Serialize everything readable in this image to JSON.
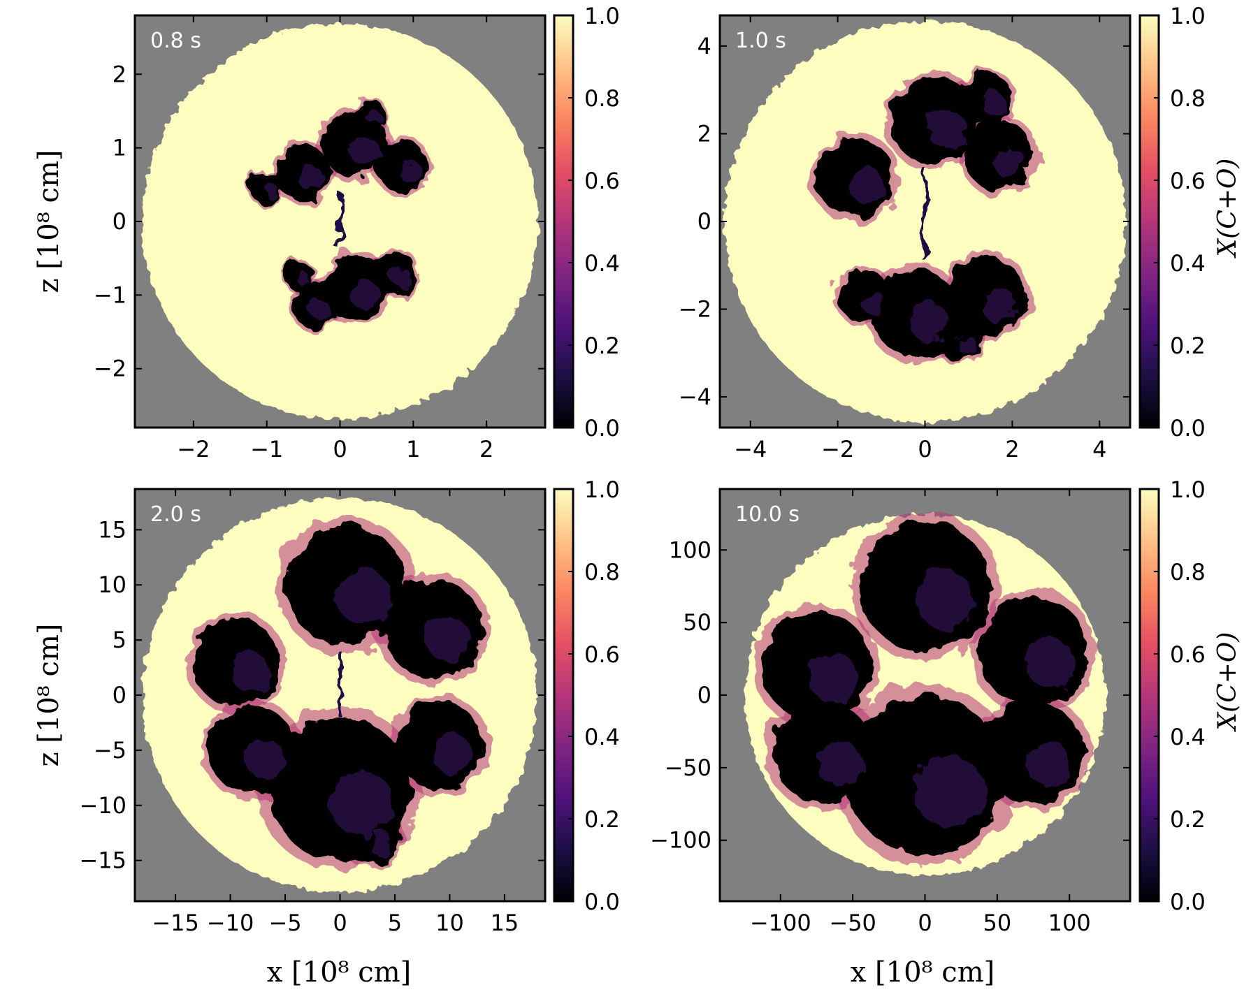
{
  "figure": {
    "xlabel": "x [10⁸ cm]",
    "ylabel": "z [10⁸ cm]",
    "colorbar_label": "X(C+O)"
  },
  "colors": {
    "background_gray": "#808080",
    "colormap": "magma",
    "colormap_stops": [
      "#000004",
      "#1c1044",
      "#4f127b",
      "#812581",
      "#b5367a",
      "#e55064",
      "#fb8761",
      "#fec287",
      "#fcfdbf"
    ]
  },
  "chart_data": [
    {
      "type": "heatmap",
      "panel": "top-left",
      "time_label": "0.8 s",
      "xlim": [
        -2.8,
        2.8
      ],
      "ylim": [
        -2.8,
        2.8
      ],
      "xticks": [
        -2,
        -1,
        0,
        1,
        2
      ],
      "xtick_labels": [
        "−2",
        "−1",
        "0",
        "1",
        "2"
      ],
      "yticks": [
        -2,
        -1,
        0,
        1,
        2
      ],
      "ytick_labels": [
        "−2",
        "−1",
        "0",
        "1",
        "2"
      ],
      "show_xlabel": false,
      "show_ylabel": true,
      "show_colorbar_label": false,
      "colorbar": {
        "range": [
          0.0,
          1.0
        ],
        "ticks": [
          "0.0",
          "0.2",
          "0.4",
          "0.6",
          "0.8",
          "1.0"
        ]
      },
      "ejecta_radius": 2.7,
      "plumes": [
        {
          "cx": 0.2,
          "cy": 1.05,
          "r": 0.45
        },
        {
          "cx": -0.5,
          "cy": 0.65,
          "r": 0.38
        },
        {
          "cx": -1.0,
          "cy": 0.45,
          "r": 0.22
        },
        {
          "cx": 0.85,
          "cy": 0.75,
          "r": 0.35
        },
        {
          "cx": 0.4,
          "cy": 1.45,
          "r": 0.22
        },
        {
          "cx": 0.2,
          "cy": -0.9,
          "r": 0.45
        },
        {
          "cx": -0.35,
          "cy": -1.15,
          "r": 0.3
        },
        {
          "cx": 0.75,
          "cy": -0.7,
          "r": 0.3
        },
        {
          "cx": -0.55,
          "cy": -0.75,
          "r": 0.2
        }
      ],
      "filaments": [
        [
          0.0,
          0.4,
          0.0,
          -0.4
        ]
      ]
    },
    {
      "type": "heatmap",
      "panel": "top-right",
      "time_label": "1.0 s",
      "xlim": [
        -4.7,
        4.7
      ],
      "ylim": [
        -4.7,
        4.7
      ],
      "xticks": [
        -4,
        -2,
        0,
        2,
        4
      ],
      "xtick_labels": [
        "−4",
        "−2",
        "0",
        "2",
        "4"
      ],
      "yticks": [
        -4,
        -2,
        0,
        2,
        4
      ],
      "ytick_labels": [
        "−4",
        "−2",
        "0",
        "2",
        "4"
      ],
      "show_xlabel": false,
      "show_ylabel": false,
      "show_colorbar_label": true,
      "colorbar": {
        "range": [
          0.0,
          1.0
        ],
        "ticks": [
          "0.0",
          "0.2",
          "0.4",
          "0.6",
          "0.8",
          "1.0"
        ]
      },
      "ejecta_radius": 4.6,
      "plumes": [
        {
          "cx": 0.2,
          "cy": 2.3,
          "r": 1.0
        },
        {
          "cx": -1.6,
          "cy": 1.0,
          "r": 0.9
        },
        {
          "cx": 1.7,
          "cy": 1.5,
          "r": 0.8
        },
        {
          "cx": 1.4,
          "cy": 2.8,
          "r": 0.6
        },
        {
          "cx": -0.2,
          "cy": -2.1,
          "r": 1.0
        },
        {
          "cx": 1.4,
          "cy": -1.7,
          "r": 0.9
        },
        {
          "cx": -1.4,
          "cy": -1.7,
          "r": 0.6
        },
        {
          "cx": 0.8,
          "cy": -2.7,
          "r": 0.5
        }
      ],
      "filaments": [
        [
          0.0,
          1.2,
          0.0,
          -0.9
        ]
      ]
    },
    {
      "type": "heatmap",
      "panel": "bottom-left",
      "time_label": "2.0 s",
      "xlim": [
        -18.7,
        18.7
      ],
      "ylim": [
        -18.7,
        18.7
      ],
      "xticks": [
        -15,
        -10,
        -5,
        0,
        5,
        10,
        15
      ],
      "xtick_labels": [
        "−15",
        "−10",
        "−5",
        "0",
        "5",
        "10",
        "15"
      ],
      "yticks": [
        -15,
        -10,
        -5,
        0,
        5,
        10,
        15
      ],
      "ytick_labels": [
        "−15",
        "−10",
        "−5",
        "0",
        "5",
        "10",
        "15"
      ],
      "show_xlabel": true,
      "show_ylabel": true,
      "show_colorbar_label": false,
      "colorbar": {
        "range": [
          0.0,
          1.0
        ],
        "ticks": [
          "0.0",
          "0.2",
          "0.4",
          "0.6",
          "0.8",
          "1.0"
        ]
      },
      "ejecta_radius": 18.0,
      "plumes": [
        {
          "cx": 0.5,
          "cy": 10.0,
          "r": 5.5
        },
        {
          "cx": -9.5,
          "cy": 3.0,
          "r": 4.0
        },
        {
          "cx": 8.5,
          "cy": 6.0,
          "r": 4.5
        },
        {
          "cx": 0.0,
          "cy": -8.5,
          "r": 6.5
        },
        {
          "cx": -8.0,
          "cy": -5.0,
          "r": 4.0
        },
        {
          "cx": 9.0,
          "cy": -4.5,
          "r": 4.0
        },
        {
          "cx": 3.0,
          "cy": -13.0,
          "r": 2.5
        }
      ],
      "filaments": [
        [
          0.0,
          4.0,
          0.0,
          -2.0
        ]
      ]
    },
    {
      "type": "heatmap",
      "panel": "bottom-right",
      "time_label": "10.0 s",
      "xlim": [
        -142,
        142
      ],
      "ylim": [
        -142,
        142
      ],
      "xticks": [
        -100,
        -50,
        0,
        50,
        100
      ],
      "xtick_labels": [
        "−100",
        "−50",
        "0",
        "50",
        "100"
      ],
      "yticks": [
        -100,
        -50,
        0,
        50,
        100
      ],
      "ytick_labels": [
        "−100",
        "−50",
        "0",
        "50",
        "100"
      ],
      "show_xlabel": true,
      "show_ylabel": false,
      "show_colorbar_label": true,
      "colorbar": {
        "range": [
          0.0,
          1.0
        ],
        "ticks": [
          "0.0",
          "0.2",
          "0.4",
          "0.6",
          "0.8",
          "1.0"
        ]
      },
      "ejecta_radius": 125,
      "plumes": [
        {
          "cx": 0,
          "cy": 75,
          "r": 45
        },
        {
          "cx": -75,
          "cy": 20,
          "r": 38
        },
        {
          "cx": 75,
          "cy": 30,
          "r": 38
        },
        {
          "cx": 0,
          "cy": -55,
          "r": 55
        },
        {
          "cx": -70,
          "cy": -40,
          "r": 35
        },
        {
          "cx": 75,
          "cy": -40,
          "r": 35
        }
      ],
      "filaments": []
    }
  ]
}
